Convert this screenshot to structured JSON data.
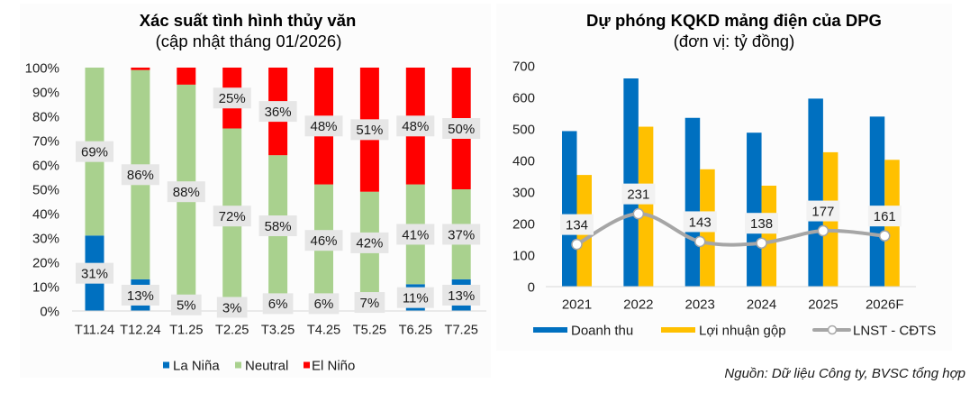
{
  "chart_data": [
    {
      "type": "bar",
      "stacked": true,
      "title": "Xác suất tình hình thủy văn",
      "subtitle": "(cập nhật tháng 01/2026)",
      "categories": [
        "T11.24",
        "T12.24",
        "T1.25",
        "T2.25",
        "T3.25",
        "T4.25",
        "T5.25",
        "T6.25",
        "T7.25"
      ],
      "series": [
        {
          "name": "La Niña",
          "color": "#0070C0",
          "values": [
            31,
            13,
            5,
            3,
            6,
            6,
            7,
            11,
            13
          ],
          "labels": [
            "31%",
            "13%",
            "5%",
            "3%",
            "6%",
            "6%",
            "7%",
            "11%",
            "13%"
          ]
        },
        {
          "name": "Neutral",
          "color": "#A9D18E",
          "values": [
            69,
            86,
            88,
            72,
            58,
            46,
            42,
            41,
            37
          ],
          "labels": [
            "69%",
            "86%",
            "88%",
            "72%",
            "58%",
            "46%",
            "42%",
            "41%",
            "37%"
          ]
        },
        {
          "name": "El Niño",
          "color": "#FF0000",
          "values": [
            0,
            1,
            7,
            25,
            36,
            48,
            51,
            48,
            50
          ],
          "labels": [
            null,
            null,
            null,
            "25%",
            "36%",
            "48%",
            "51%",
            "48%",
            "50%"
          ]
        }
      ],
      "xlabel": "",
      "ylabel": "",
      "ylim": [
        0,
        100
      ],
      "ytick_values": [
        0,
        10,
        20,
        30,
        40,
        50,
        60,
        70,
        80,
        90,
        100
      ],
      "ytick_labels": [
        "0%",
        "10%",
        "20%",
        "30%",
        "40%",
        "50%",
        "60%",
        "70%",
        "80%",
        "90%",
        "100%"
      ],
      "grid": false,
      "legend": "bottom"
    },
    {
      "type": "bar",
      "title": "Dự phóng KQKD mảng điện của DPG",
      "subtitle": "(đơn vị: tỷ đồng)",
      "categories": [
        "2021",
        "2022",
        "2023",
        "2024",
        "2025",
        "2026F"
      ],
      "series": [
        {
          "name": "Doanh thu",
          "type": "bar",
          "color": "#0070C0",
          "values": [
            493,
            660,
            535,
            488,
            596,
            539
          ]
        },
        {
          "name": "Lợi nhuận gộp",
          "type": "bar",
          "color": "#FFC000",
          "values": [
            354,
            507,
            372,
            320,
            426,
            402
          ]
        },
        {
          "name": "LNST - CĐTS",
          "type": "line",
          "color": "#A6A6A6",
          "values": [
            134,
            231,
            143,
            138,
            177,
            161
          ]
        }
      ],
      "xlabel": "",
      "ylabel": "",
      "ylim": [
        0,
        700
      ],
      "ytick_values": [
        0,
        100,
        200,
        300,
        400,
        500,
        600,
        700
      ],
      "grid": false,
      "legend": "bottom"
    }
  ],
  "source": "Nguồn: Dữ liệu Công ty, BVSC tổng hợp"
}
